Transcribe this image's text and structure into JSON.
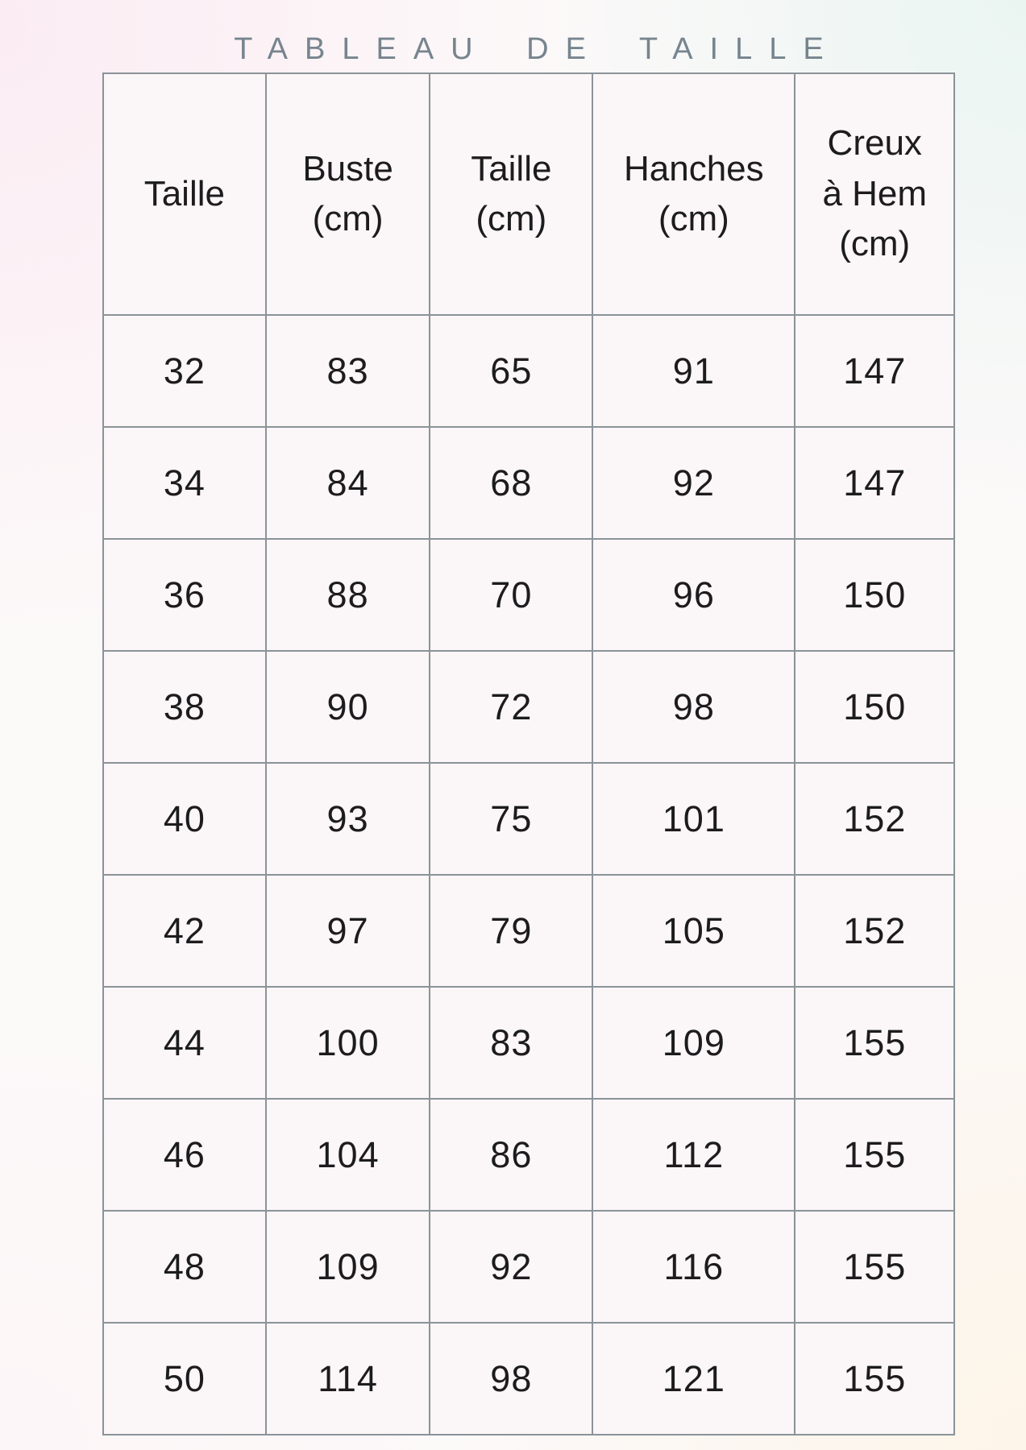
{
  "title": "TABLEAU DE TAILLE",
  "table": {
    "headers": [
      "Taille",
      "Buste\n(cm)",
      "Taille\n(cm)",
      "Hanches\n(cm)",
      "Creux\nà Hem\n(cm)"
    ],
    "rows": [
      [
        "32",
        "83",
        "65",
        "91",
        "147"
      ],
      [
        "34",
        "84",
        "68",
        "92",
        "147"
      ],
      [
        "36",
        "88",
        "70",
        "96",
        "150"
      ],
      [
        "38",
        "90",
        "72",
        "98",
        "150"
      ],
      [
        "40",
        "93",
        "75",
        "101",
        "152"
      ],
      [
        "42",
        "97",
        "79",
        "105",
        "152"
      ],
      [
        "44",
        "100",
        "83",
        "109",
        "155"
      ],
      [
        "46",
        "104",
        "86",
        "112",
        "155"
      ],
      [
        "48",
        "109",
        "92",
        "116",
        "155"
      ],
      [
        "50",
        "114",
        "98",
        "121",
        "155"
      ]
    ]
  },
  "chart_data": {
    "type": "table",
    "title": "TABLEAU DE TAILLE",
    "columns": [
      "Taille",
      "Buste (cm)",
      "Taille (cm)",
      "Hanches (cm)",
      "Creux à Hem (cm)"
    ],
    "rows": [
      [
        32,
        83,
        65,
        91,
        147
      ],
      [
        34,
        84,
        68,
        92,
        147
      ],
      [
        36,
        88,
        70,
        96,
        150
      ],
      [
        38,
        90,
        72,
        98,
        150
      ],
      [
        40,
        93,
        75,
        101,
        152
      ],
      [
        42,
        97,
        79,
        105,
        152
      ],
      [
        44,
        100,
        83,
        109,
        155
      ],
      [
        46,
        104,
        86,
        112,
        155
      ],
      [
        48,
        109,
        92,
        116,
        155
      ],
      [
        50,
        114,
        98,
        121,
        155
      ]
    ],
    "legend_position": "none",
    "grid": true
  },
  "colors": {
    "border": "#8b9399",
    "cell_background": "#fbf6f7",
    "text": "#1c1c1e",
    "title": "#76848e",
    "background_pink": "#fbecf3",
    "background_mint": "#eaf5f2",
    "background_cream": "#fdf5e9"
  }
}
